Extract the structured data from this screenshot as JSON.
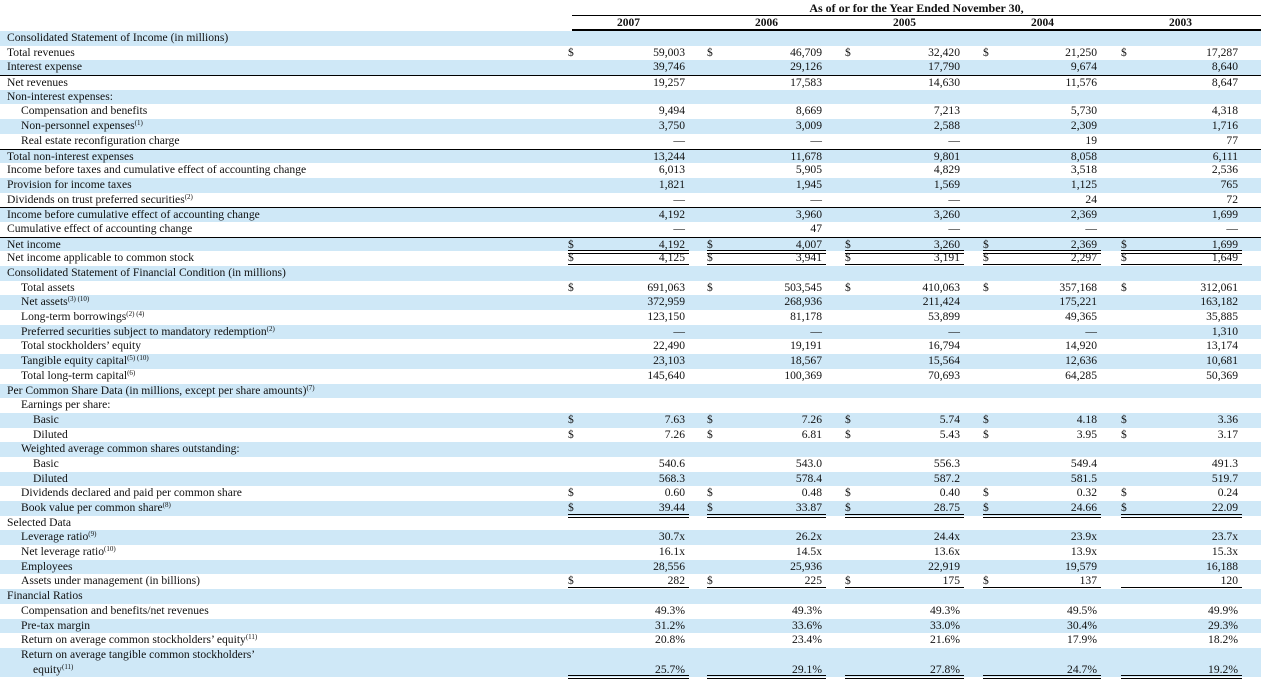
{
  "header": {
    "title": "As of or for the Year Ended November 30,",
    "years": [
      "2007",
      "2006",
      "2005",
      "2004",
      "2003"
    ]
  },
  "colors": {
    "shade": "#cfe8f7",
    "rule": "#000000"
  },
  "rows": [
    {
      "label": "Consolidated Statement of Income (in millions)",
      "indent": 0,
      "shade": true
    },
    {
      "label": "Total revenues",
      "indent": 0,
      "shade": false,
      "dollar": [
        true,
        true,
        true,
        true,
        true
      ],
      "values": [
        "59,003",
        "46,709",
        "32,420",
        "21,250",
        "17,287"
      ]
    },
    {
      "label": "Interest expense",
      "indent": 0,
      "shade": true,
      "values": [
        "39,746",
        "29,126",
        "17,790",
        "9,674",
        "8,640"
      ],
      "underline": true
    },
    {
      "label": "Net revenues",
      "indent": 0,
      "shade": false,
      "values": [
        "19,257",
        "17,583",
        "14,630",
        "11,576",
        "8,647"
      ]
    },
    {
      "label": "Non-interest expenses:",
      "indent": 0,
      "shade": true
    },
    {
      "label": "Compensation and benefits",
      "indent": 1,
      "shade": false,
      "values": [
        "9,494",
        "8,669",
        "7,213",
        "5,730",
        "4,318"
      ]
    },
    {
      "label": "Non-personnel expenses",
      "sup": "(1)",
      "indent": 1,
      "shade": true,
      "values": [
        "3,750",
        "3,009",
        "2,588",
        "2,309",
        "1,716"
      ]
    },
    {
      "label": "Real estate reconfiguration charge",
      "indent": 1,
      "shade": false,
      "values": [
        "—",
        "—",
        "—",
        "19",
        "77"
      ],
      "underline": true
    },
    {
      "label": "Total non-interest expenses",
      "indent": 0,
      "shade": true,
      "values": [
        "13,244",
        "11,678",
        "9,801",
        "8,058",
        "6,111"
      ]
    },
    {
      "label": "Income before taxes and cumulative effect of accounting change",
      "indent": 0,
      "shade": false,
      "values": [
        "6,013",
        "5,905",
        "4,829",
        "3,518",
        "2,536"
      ]
    },
    {
      "label": "Provision for income taxes",
      "indent": 0,
      "shade": true,
      "values": [
        "1,821",
        "1,945",
        "1,569",
        "1,125",
        "765"
      ]
    },
    {
      "label": "Dividends on trust preferred securities",
      "sup": "(2)",
      "indent": 0,
      "shade": false,
      "values": [
        "—",
        "—",
        "—",
        "24",
        "72"
      ],
      "underline": true
    },
    {
      "label": "Income before cumulative effect of accounting change",
      "indent": 0,
      "shade": true,
      "values": [
        "4,192",
        "3,960",
        "3,260",
        "2,369",
        "1,699"
      ]
    },
    {
      "label": "Cumulative effect of accounting change",
      "indent": 0,
      "shade": false,
      "values": [
        "—",
        "47",
        "—",
        "—",
        "—"
      ],
      "underline": true
    },
    {
      "label": "Net income",
      "indent": 0,
      "shade": true,
      "dollar": [
        true,
        true,
        true,
        true,
        true
      ],
      "values": [
        "4,192",
        "4,007",
        "3,260",
        "2,369",
        "1,699"
      ],
      "double": true
    },
    {
      "label": "Net income applicable to common stock",
      "indent": 0,
      "shade": false,
      "dollar": [
        true,
        true,
        true,
        true,
        true
      ],
      "values": [
        "4,125",
        "3,941",
        "3,191",
        "2,297",
        "1,649"
      ],
      "double": true
    },
    {
      "label": "Consolidated Statement of Financial Condition (in millions)",
      "indent": 0,
      "shade": true
    },
    {
      "label": "Total assets",
      "indent": 1,
      "shade": false,
      "dollar": [
        true,
        true,
        true,
        true,
        true
      ],
      "values": [
        "691,063",
        "503,545",
        "410,063",
        "357,168",
        "312,061"
      ]
    },
    {
      "label": "Net assets",
      "sup": "(3) (10)",
      "indent": 1,
      "shade": true,
      "values": [
        "372,959",
        "268,936",
        "211,424",
        "175,221",
        "163,182"
      ]
    },
    {
      "label": "Long-term borrowings",
      "sup": "(2) (4)",
      "indent": 1,
      "shade": false,
      "values": [
        "123,150",
        "81,178",
        "53,899",
        "49,365",
        "35,885"
      ]
    },
    {
      "label": "Preferred securities subject to mandatory redemption",
      "sup": "(2)",
      "indent": 1,
      "shade": true,
      "values": [
        "—",
        "—",
        "—",
        "—",
        "1,310"
      ]
    },
    {
      "label": "Total stockholders’ equity",
      "indent": 1,
      "shade": false,
      "values": [
        "22,490",
        "19,191",
        "16,794",
        "14,920",
        "13,174"
      ]
    },
    {
      "label": "Tangible equity capital",
      "sup": "(5) (10)",
      "indent": 1,
      "shade": true,
      "values": [
        "23,103",
        "18,567",
        "15,564",
        "12,636",
        "10,681"
      ]
    },
    {
      "label": "Total long-term capital",
      "sup": "(6)",
      "indent": 1,
      "shade": false,
      "values": [
        "145,640",
        "100,369",
        "70,693",
        "64,285",
        "50,369"
      ]
    },
    {
      "label": "Per Common Share Data (in millions, except per share amounts)",
      "sup": "(7)",
      "indent": 0,
      "shade": true
    },
    {
      "label": "Earnings per share:",
      "indent": 1,
      "shade": false
    },
    {
      "label": "Basic",
      "indent": 2,
      "shade": true,
      "dollar": [
        true,
        true,
        true,
        true,
        true
      ],
      "values": [
        "7.63",
        "7.26",
        "5.74",
        "4.18",
        "3.36"
      ]
    },
    {
      "label": "Diluted",
      "indent": 2,
      "shade": false,
      "dollar": [
        true,
        true,
        true,
        true,
        true
      ],
      "values": [
        "7.26",
        "6.81",
        "5.43",
        "3.95",
        "3.17"
      ]
    },
    {
      "label": "Weighted average common shares outstanding:",
      "indent": 1,
      "shade": true
    },
    {
      "label": "Basic",
      "indent": 2,
      "shade": false,
      "values": [
        "540.6",
        "543.0",
        "556.3",
        "549.4",
        "491.3"
      ]
    },
    {
      "label": "Diluted",
      "indent": 2,
      "shade": true,
      "values": [
        "568.3",
        "578.4",
        "587.2",
        "581.5",
        "519.7"
      ]
    },
    {
      "label": "Dividends declared and paid per common share",
      "indent": 1,
      "shade": false,
      "dollar": [
        true,
        true,
        true,
        true,
        true
      ],
      "values": [
        "0.60",
        "0.48",
        "0.40",
        "0.32",
        "0.24"
      ]
    },
    {
      "label": "Book value per common share",
      "sup": "(8)",
      "indent": 1,
      "shade": true,
      "dollar": [
        true,
        true,
        true,
        true,
        true
      ],
      "values": [
        "39.44",
        "33.87",
        "28.75",
        "24.66",
        "22.09"
      ],
      "double": true
    },
    {
      "label": "Selected Data",
      "indent": 0,
      "shade": false
    },
    {
      "label": "Leverage ratio",
      "sup": "(9)",
      "indent": 1,
      "shade": true,
      "values": [
        "30.7x",
        "26.2x",
        "24.4x",
        "23.9x",
        "23.7x"
      ]
    },
    {
      "label": "Net leverage ratio",
      "sup": "(10)",
      "indent": 1,
      "shade": false,
      "values": [
        "16.1x",
        "14.5x",
        "13.6x",
        "13.9x",
        "15.3x"
      ]
    },
    {
      "label": "Employees",
      "indent": 1,
      "shade": true,
      "values": [
        "28,556",
        "25,936",
        "22,919",
        "19,579",
        "16,188"
      ]
    },
    {
      "label": "Assets under management (in billions)",
      "indent": 1,
      "shade": false,
      "dollar": [
        true,
        true,
        true,
        true,
        false
      ],
      "values": [
        "282",
        "225",
        "175",
        "137",
        "120"
      ],
      "double": true
    },
    {
      "label": "Financial Ratios",
      "indent": 0,
      "shade": true
    },
    {
      "label": "Compensation and benefits/net revenues",
      "indent": 1,
      "shade": false,
      "values": [
        "49.3%",
        "49.3%",
        "49.3%",
        "49.5%",
        "49.9%"
      ]
    },
    {
      "label": "Pre-tax margin",
      "indent": 1,
      "shade": true,
      "values": [
        "31.2%",
        "33.6%",
        "33.0%",
        "30.4%",
        "29.3%"
      ]
    },
    {
      "label": "Return on average common stockholders’ equity",
      "sup": "(11)",
      "indent": 1,
      "shade": false,
      "values": [
        "20.8%",
        "23.4%",
        "21.6%",
        "17.9%",
        "18.2%"
      ]
    },
    {
      "label": "Return on average tangible common stockholders’",
      "label2": "equity",
      "sup": "(11)",
      "indent": 1,
      "shade": true,
      "tall": true,
      "values": [
        "25.7%",
        "29.1%",
        "27.8%",
        "24.7%",
        "19.2%"
      ],
      "double": true
    }
  ]
}
